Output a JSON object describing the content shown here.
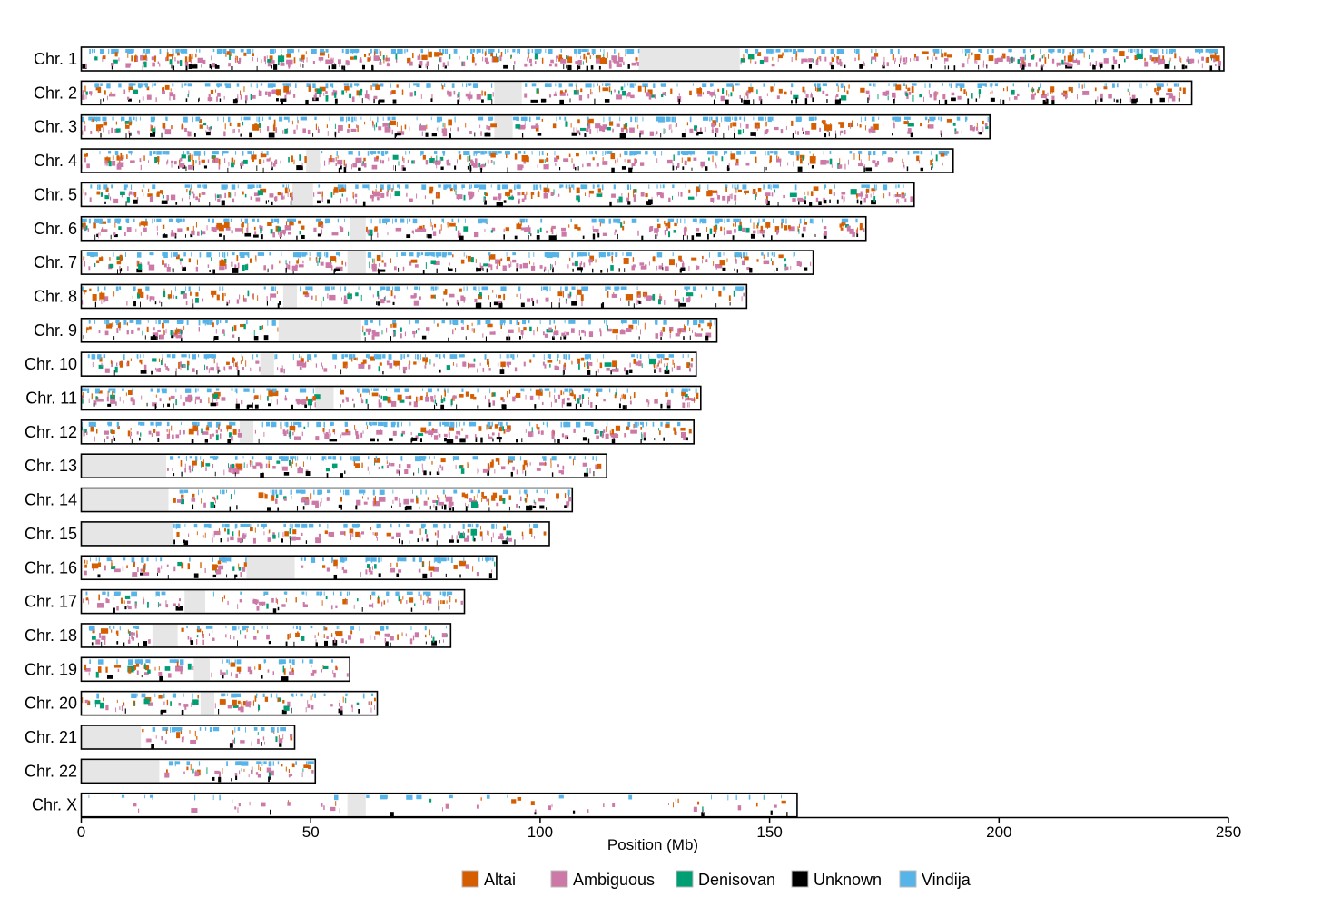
{
  "chart_data": {
    "type": "karyogram",
    "xlabel": "Position (Mb)",
    "xlim": [
      0,
      250
    ],
    "x_ticks": [
      0,
      50,
      100,
      150,
      200,
      250
    ],
    "legend": {
      "placement": "bottom-center",
      "entries": [
        {
          "name": "Altai",
          "color": "#d55e00"
        },
        {
          "name": "Ambiguous",
          "color": "#cc79a7"
        },
        {
          "name": "Denisovan",
          "color": "#009e73"
        },
        {
          "name": "Unknown",
          "color": "#000000"
        },
        {
          "name": "Vindija",
          "color": "#56b4e9"
        }
      ]
    },
    "gap_color": "#e6e6e6",
    "chromosomes": [
      {
        "label": "Chr. 1",
        "length": 249,
        "gaps": [
          [
            121.5,
            143.5
          ]
        ],
        "density": 1.3
      },
      {
        "label": "Chr. 2",
        "length": 242,
        "gaps": [
          [
            90,
            96
          ]
        ],
        "density": 1.0
      },
      {
        "label": "Chr. 3",
        "length": 198,
        "gaps": [
          [
            90,
            94
          ]
        ],
        "density": 1.0
      },
      {
        "label": "Chr. 4",
        "length": 190,
        "gaps": [
          [
            49,
            52
          ]
        ],
        "density": 1.05
      },
      {
        "label": "Chr. 5",
        "length": 181.5,
        "gaps": [
          [
            46,
            50.5
          ]
        ],
        "density": 1.0
      },
      {
        "label": "Chr. 6",
        "length": 171,
        "gaps": [
          [
            58.5,
            62
          ]
        ],
        "density": 1.05
      },
      {
        "label": "Chr. 7",
        "length": 159.5,
        "gaps": [
          [
            58,
            62
          ]
        ],
        "density": 1.05
      },
      {
        "label": "Chr. 8",
        "length": 145,
        "gaps": [
          [
            44,
            47
          ]
        ],
        "density": 0.85
      },
      {
        "label": "Chr. 9",
        "length": 138.5,
        "gaps": [
          [
            43,
            61
          ]
        ],
        "density": 1.0
      },
      {
        "label": "Chr. 10",
        "length": 134,
        "gaps": [
          [
            39,
            42
          ]
        ],
        "density": 1.0
      },
      {
        "label": "Chr. 11",
        "length": 135,
        "gaps": [
          [
            51,
            55
          ]
        ],
        "density": 1.0
      },
      {
        "label": "Chr. 12",
        "length": 133.5,
        "gaps": [
          [
            34.5,
            37.5
          ]
        ],
        "density": 1.1
      },
      {
        "label": "Chr. 13",
        "length": 114.5,
        "gaps": [
          [
            0,
            18.5
          ]
        ],
        "density": 0.95
      },
      {
        "label": "Chr. 14",
        "length": 107,
        "gaps": [
          [
            0,
            19
          ]
        ],
        "density": 0.95
      },
      {
        "label": "Chr. 15",
        "length": 102,
        "gaps": [
          [
            0,
            20
          ]
        ],
        "density": 0.95
      },
      {
        "label": "Chr. 16",
        "length": 90.5,
        "gaps": [
          [
            36,
            46.5
          ]
        ],
        "density": 0.9
      },
      {
        "label": "Chr. 17",
        "length": 83.5,
        "gaps": [
          [
            22.5,
            27
          ]
        ],
        "density": 0.75
      },
      {
        "label": "Chr. 18",
        "length": 80.5,
        "gaps": [
          [
            15.5,
            21
          ]
        ],
        "density": 0.85
      },
      {
        "label": "Chr. 19",
        "length": 58.5,
        "gaps": [
          [
            24.5,
            28
          ]
        ],
        "density": 0.8
      },
      {
        "label": "Chr. 20",
        "length": 64.5,
        "gaps": [
          [
            26,
            29
          ]
        ],
        "density": 0.8
      },
      {
        "label": "Chr. 21",
        "length": 46.5,
        "gaps": [
          [
            0,
            13
          ]
        ],
        "density": 0.75
      },
      {
        "label": "Chr. 22",
        "length": 51,
        "gaps": [
          [
            0,
            17
          ]
        ],
        "density": 0.8
      },
      {
        "label": "Chr. X",
        "length": 156,
        "gaps": [
          [
            58,
            62
          ]
        ],
        "density": 0.2
      }
    ]
  }
}
